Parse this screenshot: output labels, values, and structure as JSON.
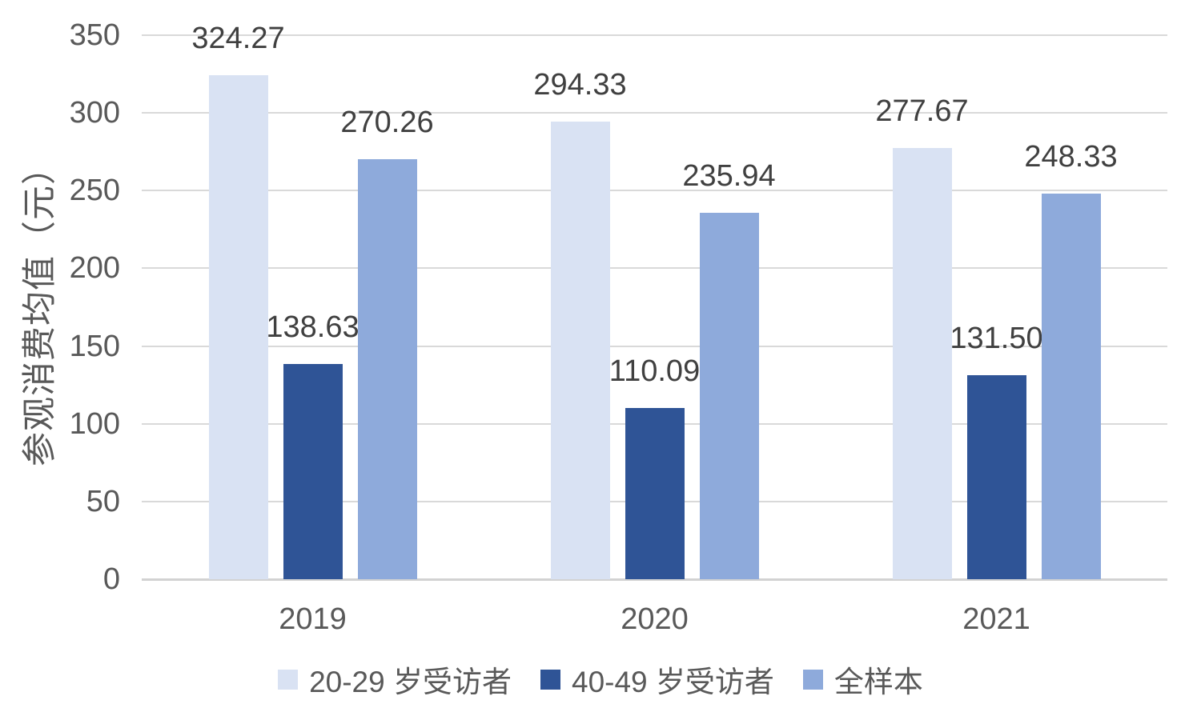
{
  "chart_data": {
    "type": "bar",
    "title": "",
    "xlabel": "",
    "ylabel": "参观消费均值（元）",
    "categories": [
      "2019",
      "2020",
      "2021"
    ],
    "series": [
      {
        "name": "20-29 岁受访者",
        "color": "#D9E2F3",
        "values": [
          324.27,
          294.33,
          277.67
        ]
      },
      {
        "name": "40-49 岁受访者",
        "color": "#2F5496",
        "values": [
          138.63,
          110.09,
          131.5
        ]
      },
      {
        "name": "全样本",
        "color": "#8EAADB",
        "values": [
          270.26,
          235.94,
          248.33
        ]
      }
    ],
    "ylim": [
      0,
      350
    ],
    "yticks": [
      0,
      50,
      100,
      150,
      200,
      250,
      300,
      350
    ],
    "value_label_decimals": 2,
    "grid": true,
    "legend_position": "bottom",
    "style": {
      "gridline_color": "#D9D9D9",
      "baseline_color": "#D2D2D2",
      "tick_label_color": "#595959",
      "data_label_color": "#404040",
      "background": "#FFFFFF"
    }
  }
}
